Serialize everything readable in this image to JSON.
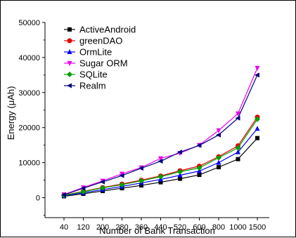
{
  "chart_data": {
    "type": "line",
    "xlabel": "Number of Bank Transaction",
    "ylabel": "Energy (μAh)",
    "categories": [
      "40",
      "120",
      "200",
      "280",
      "360",
      "440",
      "520",
      "600",
      "800",
      "1000",
      "1500"
    ],
    "yticks": [
      0,
      10000,
      20000,
      30000,
      40000,
      50000
    ],
    "ylim": [
      -5700,
      50000
    ],
    "legend_position": "top-left",
    "series": [
      {
        "name": "ActiveAndroid",
        "color": "#000000",
        "marker": "square",
        "values": [
          400,
          1100,
          1900,
          2700,
          3500,
          4400,
          5400,
          6500,
          8700,
          11000,
          17000
        ]
      },
      {
        "name": "greenDAO",
        "color": "#e60000",
        "marker": "circle",
        "values": [
          700,
          1800,
          2900,
          3900,
          5000,
          6200,
          7700,
          9000,
          11700,
          14800,
          23000
        ]
      },
      {
        "name": "OrmLite",
        "color": "#0000ee",
        "marker": "triangle-up",
        "values": [
          550,
          1400,
          2300,
          3200,
          4200,
          5200,
          6400,
          7600,
          10000,
          13000,
          19700
        ]
      },
      {
        "name": "Sugar ORM",
        "color": "#ee00ee",
        "marker": "triangle-down",
        "values": [
          900,
          2900,
          4800,
          6800,
          8600,
          11200,
          12700,
          15000,
          19200,
          24000,
          37000
        ]
      },
      {
        "name": "SQLite",
        "color": "#00a000",
        "marker": "diamond",
        "values": [
          650,
          1700,
          2800,
          3700,
          4800,
          6000,
          7400,
          8500,
          11400,
          14200,
          22400
        ]
      },
      {
        "name": "Realm",
        "color": "#000080",
        "marker": "triangle-left",
        "values": [
          800,
          2700,
          4500,
          6300,
          8400,
          10400,
          13000,
          14900,
          17900,
          22700,
          35000
        ]
      }
    ]
  }
}
